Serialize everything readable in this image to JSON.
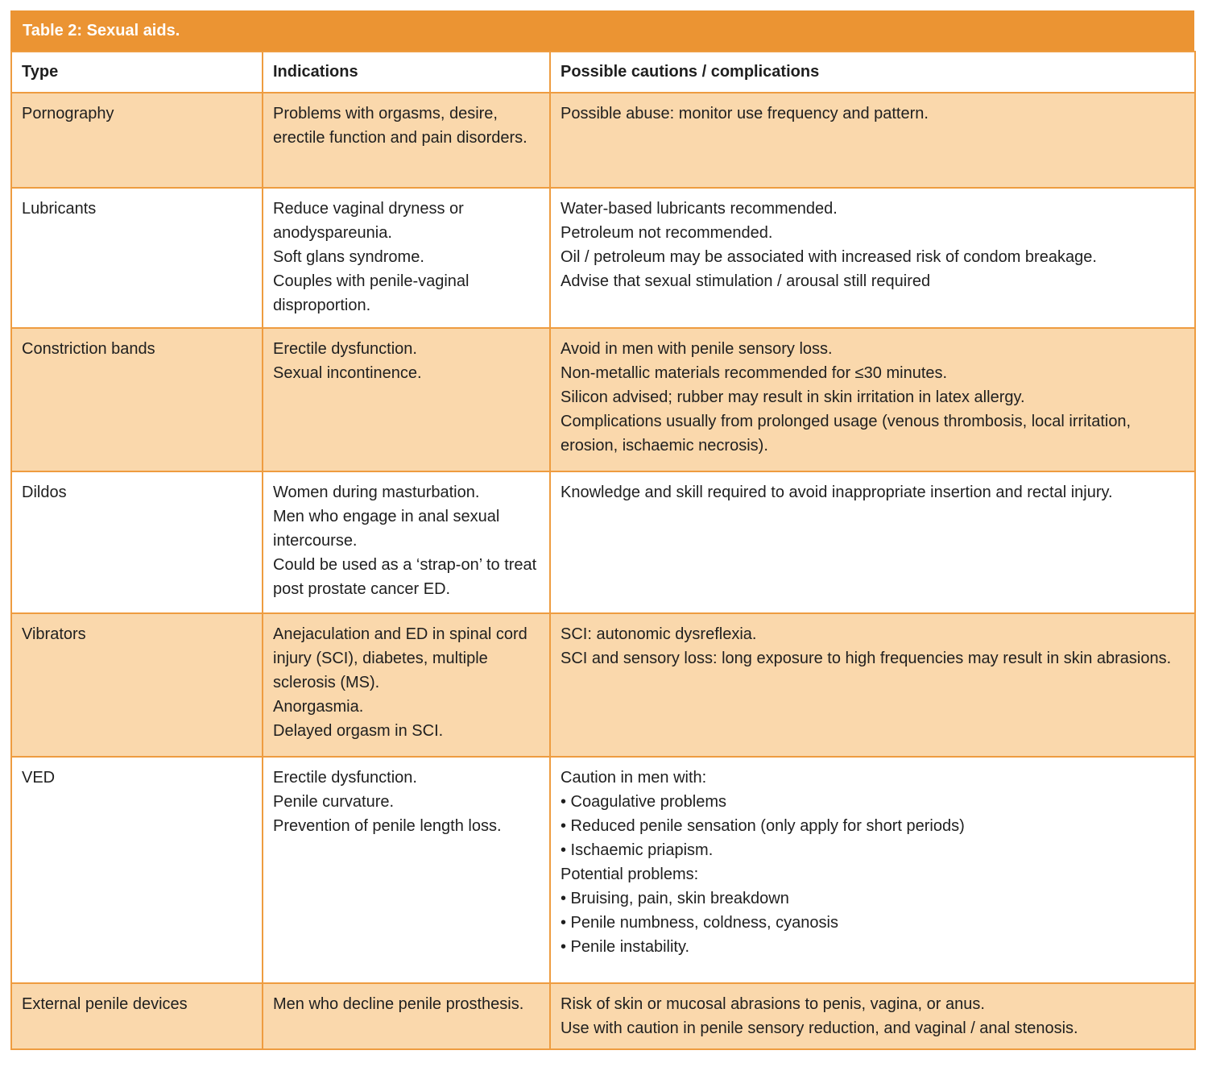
{
  "table": {
    "title": "Table 2: Sexual aids.",
    "accent_color": "#eb9433",
    "stripe_color": "#fad8ac",
    "border_color": "#ee9c40",
    "columns": [
      "Type",
      "Indications",
      "Possible cautions / complications"
    ],
    "rows": [
      {
        "type": "Pornography",
        "indications": [
          "Problems with orgasms, desire, erectile function and pain disorders."
        ],
        "cautions": [
          "Possible abuse: monitor use frequency and pattern."
        ]
      },
      {
        "type": "Lubricants",
        "indications": [
          "Reduce vaginal dryness or anodyspareunia.",
          "Soft glans syndrome.",
          "Couples with penile-vaginal disproportion."
        ],
        "cautions": [
          "Water-based lubricants recommended.",
          "Petroleum not recommended.",
          "Oil / petroleum may be associated with increased risk of condom breakage.",
          "Advise that sexual stimulation / arousal still required"
        ]
      },
      {
        "type": "Constriction bands",
        "indications": [
          "Erectile dysfunction.",
          "Sexual incontinence."
        ],
        "cautions": [
          "Avoid in men with penile sensory loss.",
          "Non-metallic materials recommended for ≤30 minutes.",
          "Silicon advised; rubber may result in skin irritation in latex allergy.",
          "Complications usually from prolonged usage (venous thrombosis, local irritation, erosion, ischaemic necrosis)."
        ]
      },
      {
        "type": "Dildos",
        "indications": [
          "Women during masturbation.",
          "Men who engage in anal sexual intercourse.",
          "Could be used as a ‘strap-on’ to treat post prostate cancer ED."
        ],
        "cautions": [
          "Knowledge and skill required to avoid inappropriate insertion and rectal injury."
        ]
      },
      {
        "type": "Vibrators",
        "indications": [
          "Anejaculation and ED in spinal cord injury (SCI), diabetes, multiple sclerosis (MS).",
          "Anorgasmia.",
          "Delayed orgasm in SCI."
        ],
        "cautions": [
          "SCI: autonomic dysreflexia.",
          "SCI and sensory loss: long exposure to high frequencies may result in skin abrasions."
        ]
      },
      {
        "type": "VED",
        "indications": [
          "Erectile dysfunction.",
          "Penile curvature.",
          "Prevention of penile length loss."
        ],
        "cautions": [
          "Caution in men with:",
          "• Coagulative problems",
          "• Reduced penile sensation (only apply for short periods)",
          "• Ischaemic priapism.",
          "Potential problems:",
          "• Bruising, pain, skin breakdown",
          "• Penile numbness, coldness, cyanosis",
          "• Penile instability."
        ]
      },
      {
        "type": "External penile devices",
        "indications": [
          "Men who decline penile prosthesis."
        ],
        "cautions": [
          "Risk of skin or mucosal abrasions to penis, vagina, or anus.",
          "Use with caution in penile sensory reduction, and vaginal / anal stenosis."
        ]
      }
    ]
  }
}
